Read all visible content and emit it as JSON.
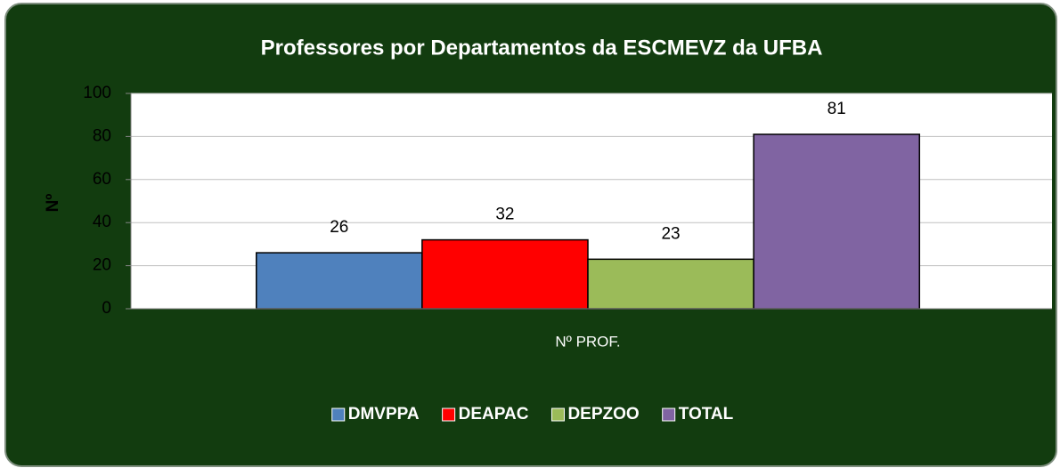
{
  "chart_data": {
    "type": "bar",
    "title": "Professores por Departamentos da ESCMEVZ da UFBA",
    "y_label": "Nº",
    "categories": [
      "Nº PROF."
    ],
    "series": [
      {
        "name": "DMVPPA",
        "color": "#4f81bd",
        "values": [
          26
        ]
      },
      {
        "name": "DEAPAC",
        "color": "#ff0000",
        "values": [
          32
        ]
      },
      {
        "name": "DEPZOO",
        "color": "#9bbb59",
        "values": [
          23
        ]
      },
      {
        "name": "TOTAL",
        "color": "#8064a2",
        "values": [
          81
        ]
      }
    ],
    "ylim": [
      0,
      100
    ],
    "yticks": [
      0,
      20,
      40,
      60,
      80,
      100
    ],
    "grid": true,
    "legend": "bottom"
  }
}
